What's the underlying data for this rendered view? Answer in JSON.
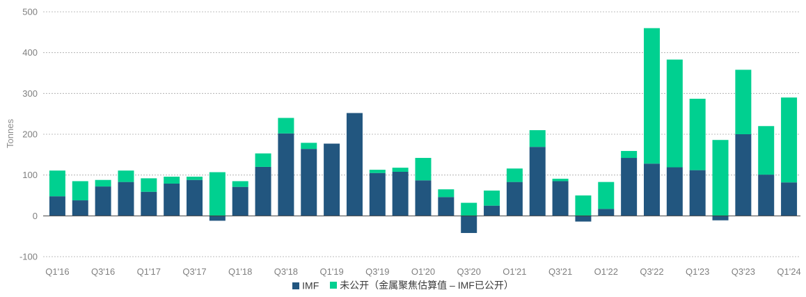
{
  "chart_data": {
    "type": "bar",
    "stacked": true,
    "ylabel": "Tonnes",
    "ylim": [
      -100,
      500
    ],
    "yticks": [
      -100,
      0,
      100,
      200,
      300,
      400,
      500
    ],
    "grid": true,
    "legend_position": "bottom-center",
    "categories": [
      "Q1'16",
      "Q2'16",
      "Q3'16",
      "Q4'16",
      "Q1'17",
      "Q2'17",
      "Q3'17",
      "Q4'17",
      "Q1'18",
      "Q2'18",
      "Q3'18",
      "Q4'18",
      "Q1'19",
      "Q2'19",
      "Q3'19",
      "Q4'19",
      "O1'20",
      "Q2'20",
      "Q3'20",
      "Q4'20",
      "O1'21",
      "Q2'21",
      "Q3'21",
      "Q4'21",
      "O1'22",
      "Q2'22",
      "Q3'22",
      "Q4'22",
      "Q1'23",
      "Q2'23",
      "Q3'23",
      "Q4'23",
      "Q1'24"
    ],
    "xtick_labels": [
      "Q1'16",
      "",
      "Q3'16",
      "",
      "Q1'17",
      "",
      "Q3'17",
      "",
      "Q1'18",
      "",
      "Q3'18",
      "",
      "Q1'19",
      "",
      "Q3'19",
      "",
      "O1'20",
      "",
      "Q3'20",
      "",
      "O1'21",
      "",
      "Q3'21",
      "",
      "O1'22",
      "",
      "Q3'22",
      "",
      "Q1'23",
      "",
      "Q3'23",
      "",
      "Q1'24"
    ],
    "series": [
      {
        "name": "IMF",
        "color": "#22567f",
        "values": [
          48,
          38,
          72,
          83,
          59,
          79,
          88,
          -12,
          71,
          120,
          202,
          164,
          177,
          252,
          105,
          108,
          87,
          46,
          -42,
          25,
          83,
          169,
          85,
          -14,
          17,
          142,
          128,
          119,
          112,
          -11,
          200,
          101,
          82
        ]
      },
      {
        "name": "未公开（金属聚焦估算值 – IMF已公开）",
        "color": "#00d090",
        "values": [
          63,
          47,
          16,
          28,
          33,
          17,
          8,
          107,
          14,
          33,
          38,
          15,
          0,
          0,
          8,
          10,
          55,
          19,
          32,
          37,
          33,
          41,
          6,
          50,
          66,
          17,
          332,
          264,
          175,
          186,
          158,
          119,
          208
        ]
      }
    ]
  }
}
